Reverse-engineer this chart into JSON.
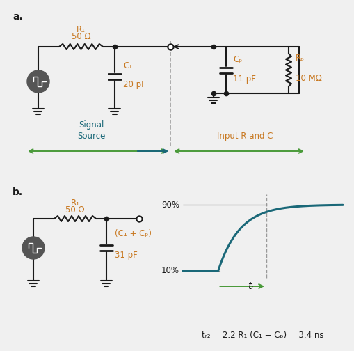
{
  "bg_color": "#f0f0f0",
  "circuit_color": "#1a1a1a",
  "teal_color": "#1a6878",
  "green_color": "#4a9a3a",
  "orange_color": "#c87820",
  "dark_gray": "#444444",
  "label_a": "a.",
  "label_b": "b.",
  "panel_a": {
    "R1_label": "R₁",
    "R1_val": "50 Ω",
    "C1_label": "C₁",
    "C1_val": "20 pF",
    "Cp_label": "Cₚ",
    "Cp_val": "11 pF",
    "Rp_label": "Rₚ",
    "Rp_val": "10 MΩ",
    "signal_source_label": "Signal\nSource",
    "input_rc_label": "Input R and C"
  },
  "panel_b": {
    "R1_label": "R₁",
    "R1_val": "50 Ω",
    "C_label": "(C₁ + Cₚ)",
    "C_val": "31 pF",
    "pct_90": "90%",
    "pct_10": "10%",
    "tr_label": "tᵣ",
    "formula": "tᵣ₂ = 2.2 R₁ (C₁ + Cₚ) = 3.4 ns"
  }
}
